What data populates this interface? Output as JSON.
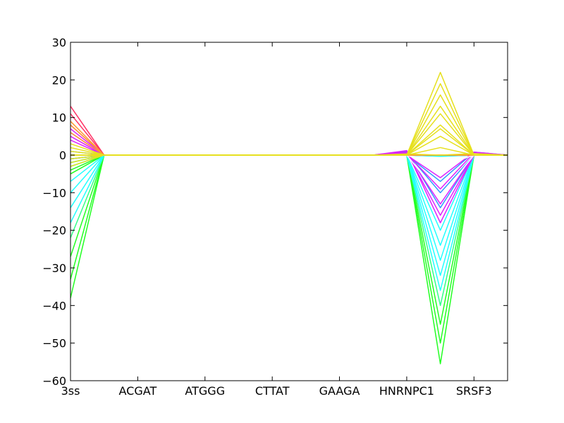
{
  "chart_data": {
    "type": "line",
    "title": "",
    "xlabel": "",
    "ylabel": "",
    "ylim": [
      -60,
      30
    ],
    "xlim": [
      0,
      13
    ],
    "yticks": [
      30,
      20,
      10,
      0,
      -10,
      -20,
      -30,
      -40,
      -50,
      -60
    ],
    "ytick_labels": [
      "30",
      "20",
      "10",
      "0",
      "−10",
      "−20",
      "−30",
      "−40",
      "−50",
      "−60"
    ],
    "xticks": [
      0,
      2,
      4,
      6,
      8,
      10,
      12
    ],
    "xtick_labels": [
      "3ss",
      "ACGAT",
      "ATGGG",
      "CTTAT",
      "GAAGA",
      "HNRNPC1",
      "SRSF3"
    ],
    "grid": false,
    "legend": "none",
    "line_width": 1.5,
    "group_colors": {
      "green": "#22ff22",
      "cyan": "#22ffff",
      "blue": "#3399ff",
      "purple": "#dd22ff",
      "white": "#ffffff",
      "yellow": "#e6e01e",
      "orange": "#ff9933",
      "red": "#ff3366"
    },
    "series": [
      {
        "color": "#22ff22",
        "values": [
          -38,
          0,
          0,
          0,
          0,
          0,
          0,
          0,
          0,
          0,
          0,
          0,
          0,
          0
        ]
      },
      {
        "color": "#22ff22",
        "values": [
          -33,
          0,
          0,
          0,
          0,
          0,
          0,
          0,
          0,
          0,
          0,
          -0.3,
          0,
          0
        ]
      },
      {
        "color": "#22ff22",
        "values": [
          -27,
          0,
          0,
          0,
          0,
          0,
          0,
          0,
          0,
          0,
          0,
          -0.2,
          0,
          0
        ]
      },
      {
        "color": "#33ff88",
        "values": [
          -22,
          0,
          0,
          0,
          0,
          0,
          0,
          0,
          0,
          0,
          0,
          -0.2,
          0,
          0
        ]
      },
      {
        "color": "#22ff22",
        "values": [
          -5,
          0,
          0,
          0,
          0,
          0,
          0,
          0,
          0,
          0,
          0,
          -55.5,
          0,
          0
        ]
      },
      {
        "color": "#22ff22",
        "values": [
          -4,
          0,
          0,
          0,
          0,
          0,
          0,
          0,
          0,
          0,
          0,
          -50,
          0,
          0
        ]
      },
      {
        "color": "#22ff22",
        "values": [
          -3,
          0,
          0,
          0,
          0,
          0,
          0,
          0,
          0,
          0,
          0,
          -45,
          0,
          0
        ]
      },
      {
        "color": "#33ff88",
        "values": [
          -2,
          0,
          0,
          0,
          0,
          0,
          0,
          0,
          0,
          0,
          0,
          -40,
          0,
          0
        ]
      },
      {
        "color": "#22ffff",
        "values": [
          -18,
          0,
          0,
          0,
          0,
          0,
          0,
          0,
          0,
          0,
          0,
          -0.3,
          0,
          0
        ]
      },
      {
        "color": "#22ffff",
        "values": [
          -14,
          0,
          0,
          0,
          0,
          0,
          0,
          0,
          0,
          0,
          0,
          -0.2,
          0,
          0
        ]
      },
      {
        "color": "#22ffff",
        "values": [
          -10,
          0,
          0,
          0,
          0,
          0,
          0,
          0,
          0,
          0,
          0,
          -0.2,
          0,
          0
        ]
      },
      {
        "color": "#22ffff",
        "values": [
          -7,
          0,
          0,
          0,
          0,
          0,
          0,
          0,
          0,
          0,
          0,
          -0.2,
          0,
          0
        ]
      },
      {
        "color": "#22ffff",
        "values": [
          -3,
          0,
          0,
          0,
          0,
          0,
          0,
          0,
          0,
          0,
          0,
          -36,
          0,
          0
        ]
      },
      {
        "color": "#22ffff",
        "values": [
          -2,
          0,
          0,
          0,
          0,
          0,
          0,
          0,
          0,
          0,
          0,
          -32,
          0,
          0
        ]
      },
      {
        "color": "#22ffff",
        "values": [
          -1,
          0,
          0,
          0,
          0,
          0,
          0,
          0,
          0,
          0,
          0,
          -28,
          0,
          0
        ]
      },
      {
        "color": "#22ffff",
        "values": [
          -2,
          0,
          0,
          0,
          0,
          0,
          0,
          0,
          0,
          0,
          0,
          -24,
          0,
          0
        ]
      },
      {
        "color": "#22ffff",
        "values": [
          -1,
          0,
          0,
          0,
          0,
          0,
          0,
          0,
          0,
          0,
          0,
          -20,
          0,
          0
        ]
      },
      {
        "color": "#3399ff",
        "values": [
          -1,
          0,
          0,
          0,
          0,
          0,
          0,
          0,
          0,
          0,
          1.0,
          -14,
          0,
          0
        ]
      },
      {
        "color": "#3399ff",
        "values": [
          1,
          0,
          0,
          0,
          0,
          0,
          0,
          0,
          0,
          0,
          0.6,
          -10,
          0,
          0
        ]
      },
      {
        "color": "#3399ff",
        "values": [
          0,
          0,
          0,
          0,
          0,
          0,
          0,
          0,
          0,
          0,
          0,
          -7,
          0.8,
          0
        ]
      },
      {
        "color": "#dd22ff",
        "values": [
          6,
          0,
          0,
          0,
          0,
          0,
          0,
          0,
          0,
          0,
          1.2,
          -18,
          0,
          0
        ]
      },
      {
        "color": "#dd22ff",
        "values": [
          7,
          0,
          0,
          0,
          0,
          0,
          0,
          0,
          0,
          0,
          0.8,
          -16,
          0,
          0
        ]
      },
      {
        "color": "#dd22ff",
        "values": [
          8,
          0,
          0,
          0,
          0,
          0,
          0,
          0,
          0,
          0,
          0.5,
          -13,
          0,
          0
        ]
      },
      {
        "color": "#dd22ff",
        "values": [
          5,
          0,
          0,
          0,
          0,
          0,
          0,
          0,
          0,
          0,
          0.3,
          -9,
          0.6,
          0
        ]
      },
      {
        "color": "#dd22ff",
        "values": [
          4,
          0,
          0,
          0,
          0,
          0,
          0,
          0,
          0,
          0,
          0,
          -6,
          0.8,
          0
        ]
      },
      {
        "color": "#ffffff",
        "values": [
          0,
          0,
          0,
          0,
          0,
          0,
          0,
          0,
          0,
          0,
          0,
          -11,
          0,
          0
        ]
      },
      {
        "color": "#ffffff",
        "values": [
          0,
          0,
          0,
          0,
          0,
          0,
          0,
          0,
          0,
          0,
          0,
          -3,
          0,
          0
        ]
      },
      {
        "color": "#ffffff",
        "values": [
          0,
          0,
          0,
          0,
          0,
          0,
          0,
          0,
          0,
          0,
          0,
          10,
          0,
          0
        ]
      },
      {
        "color": "#ff3366",
        "values": [
          13,
          0,
          0,
          0,
          0,
          0,
          0,
          0,
          0,
          0,
          0,
          0,
          0,
          0
        ]
      },
      {
        "color": "#ff3366",
        "values": [
          11,
          0,
          0,
          0,
          0,
          0,
          0,
          0,
          0,
          0,
          0,
          0,
          0,
          0
        ]
      },
      {
        "color": "#ff9933",
        "values": [
          9,
          0,
          0,
          0,
          0,
          0,
          0,
          0,
          0,
          0,
          0,
          0,
          0,
          0
        ]
      },
      {
        "color": "#ff9933",
        "values": [
          8,
          0,
          0,
          0,
          0,
          0,
          0,
          0,
          0,
          0,
          0,
          0,
          0,
          0
        ]
      },
      {
        "color": "#ff9933",
        "values": [
          6,
          0,
          0,
          0,
          0,
          0,
          0,
          0,
          0,
          0,
          0,
          0,
          0,
          0
        ]
      },
      {
        "color": "#e6e01e",
        "values": [
          3,
          0,
          0,
          0,
          0,
          0,
          0,
          0,
          0,
          0,
          0,
          22,
          0,
          0
        ]
      },
      {
        "color": "#e6e01e",
        "values": [
          2,
          0,
          0,
          0,
          0,
          0,
          0,
          0,
          0,
          0,
          0,
          19,
          0,
          0
        ]
      },
      {
        "color": "#e6e01e",
        "values": [
          1,
          0,
          0,
          0,
          0,
          0,
          0,
          0,
          0,
          0,
          0,
          16,
          0,
          0
        ]
      },
      {
        "color": "#e6e01e",
        "values": [
          -1,
          0,
          0,
          0,
          0,
          0,
          0,
          0,
          0,
          0,
          0,
          13,
          0,
          0
        ]
      },
      {
        "color": "#e6e01e",
        "values": [
          -2,
          0,
          0,
          0,
          0,
          0,
          0,
          0,
          0,
          0,
          0,
          11,
          0,
          0
        ]
      },
      {
        "color": "#e6e01e",
        "values": [
          -3,
          0,
          0,
          0,
          0,
          0,
          0,
          0,
          0,
          0,
          0,
          8,
          0,
          0
        ]
      },
      {
        "color": "#e6e01e",
        "values": [
          0,
          0,
          0,
          0,
          0,
          0,
          0,
          0,
          0,
          0,
          0,
          7,
          0,
          0
        ]
      },
      {
        "color": "#e6e01e",
        "values": [
          0,
          0,
          0,
          0,
          0,
          0,
          0,
          0,
          0,
          0,
          0,
          5,
          0,
          0
        ]
      },
      {
        "color": "#e6e01e",
        "values": [
          0,
          0,
          0,
          0,
          0,
          0,
          0,
          0,
          0,
          0,
          0,
          2,
          0,
          0
        ]
      },
      {
        "color": "#e6e01e",
        "values": [
          0,
          0,
          0,
          0,
          0,
          0,
          0,
          0,
          0,
          0,
          0.3,
          0,
          0.4,
          0
        ]
      }
    ]
  }
}
